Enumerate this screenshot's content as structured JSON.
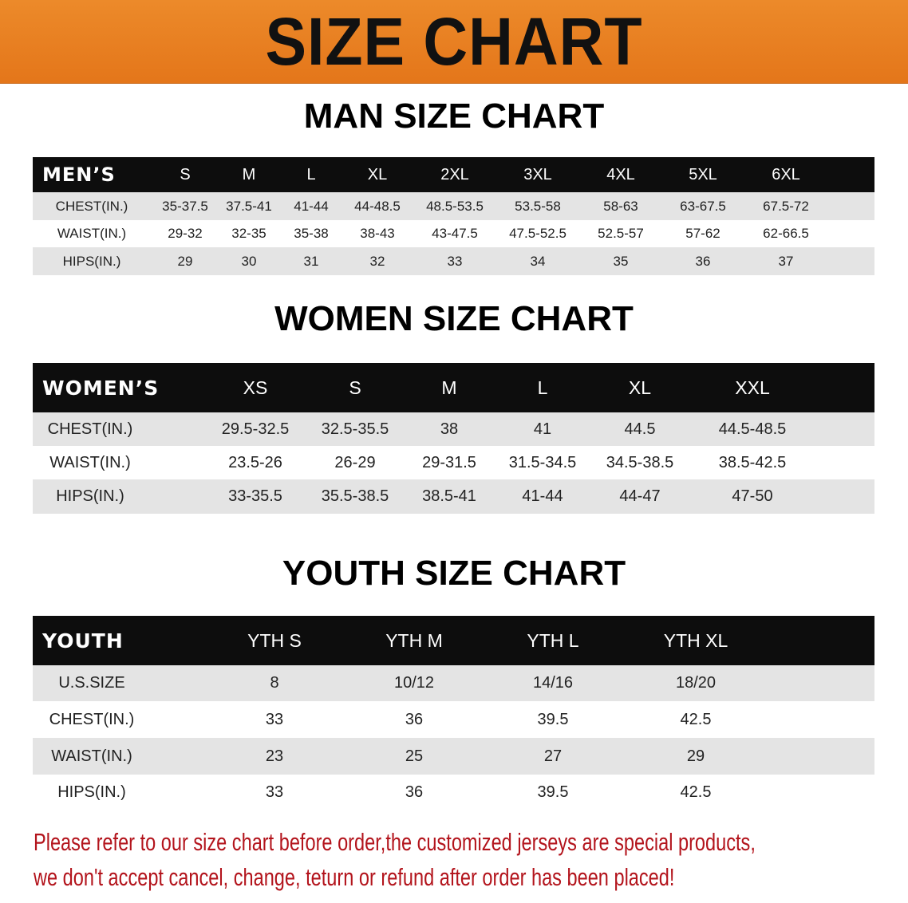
{
  "banner_title": "SIZE CHART",
  "colors": {
    "banner": "#e87f1f",
    "header_row": "#0d0d0d",
    "stripe": "#e4e4e4",
    "note_text": "#b3141c"
  },
  "chart_data": [
    {
      "type": "table",
      "title": "MAN SIZE CHART",
      "columns": [
        "MEN’S",
        "S",
        "M",
        "L",
        "XL",
        "2XL",
        "3XL",
        "4XL",
        "5XL",
        "6XL"
      ],
      "rows": [
        [
          "CHEST(IN.)",
          "35-37.5",
          "37.5-41",
          "41-44",
          "44-48.5",
          "48.5-53.5",
          "53.5-58",
          "58-63",
          "63-67.5",
          "67.5-72"
        ],
        [
          "WAIST(IN.)",
          "29-32",
          "32-35",
          "35-38",
          "38-43",
          "43-47.5",
          "47.5-52.5",
          "52.5-57",
          "57-62",
          "62-66.5"
        ],
        [
          "HIPS(IN.)",
          "29",
          "30",
          "31",
          "32",
          "33",
          "34",
          "35",
          "36",
          "37"
        ]
      ]
    },
    {
      "type": "table",
      "title": "WOMEN SIZE CHART",
      "columns": [
        "WOMEN’S",
        "XS",
        "S",
        "M",
        "L",
        "XL",
        "XXL"
      ],
      "rows": [
        [
          "CHEST(IN.)",
          "29.5-32.5",
          "32.5-35.5",
          "38",
          "41",
          "44.5",
          "44.5-48.5"
        ],
        [
          "WAIST(IN.)",
          "23.5-26",
          "26-29",
          "29-31.5",
          "31.5-34.5",
          "34.5-38.5",
          "38.5-42.5"
        ],
        [
          "HIPS(IN.)",
          "33-35.5",
          "35.5-38.5",
          "38.5-41",
          "41-44",
          "44-47",
          "47-50"
        ]
      ]
    },
    {
      "type": "table",
      "title": "YOUTH SIZE CHART",
      "columns": [
        "YOUTH",
        "YTH S",
        "YTH M",
        "YTH L",
        "YTH XL"
      ],
      "rows": [
        [
          "U.S.SIZE",
          "8",
          "10/12",
          "14/16",
          "18/20"
        ],
        [
          "CHEST(IN.)",
          "33",
          "36",
          "39.5",
          "42.5"
        ],
        [
          "WAIST(IN.)",
          "23",
          "25",
          "27",
          "29"
        ],
        [
          "HIPS(IN.)",
          "33",
          "36",
          "39.5",
          "42.5"
        ]
      ]
    }
  ],
  "note": {
    "line1": "Please refer to our size chart before order,the customized jerseys are special products,",
    "line2": "we don't accept cancel, change, teturn or refund after order has been placed!"
  }
}
